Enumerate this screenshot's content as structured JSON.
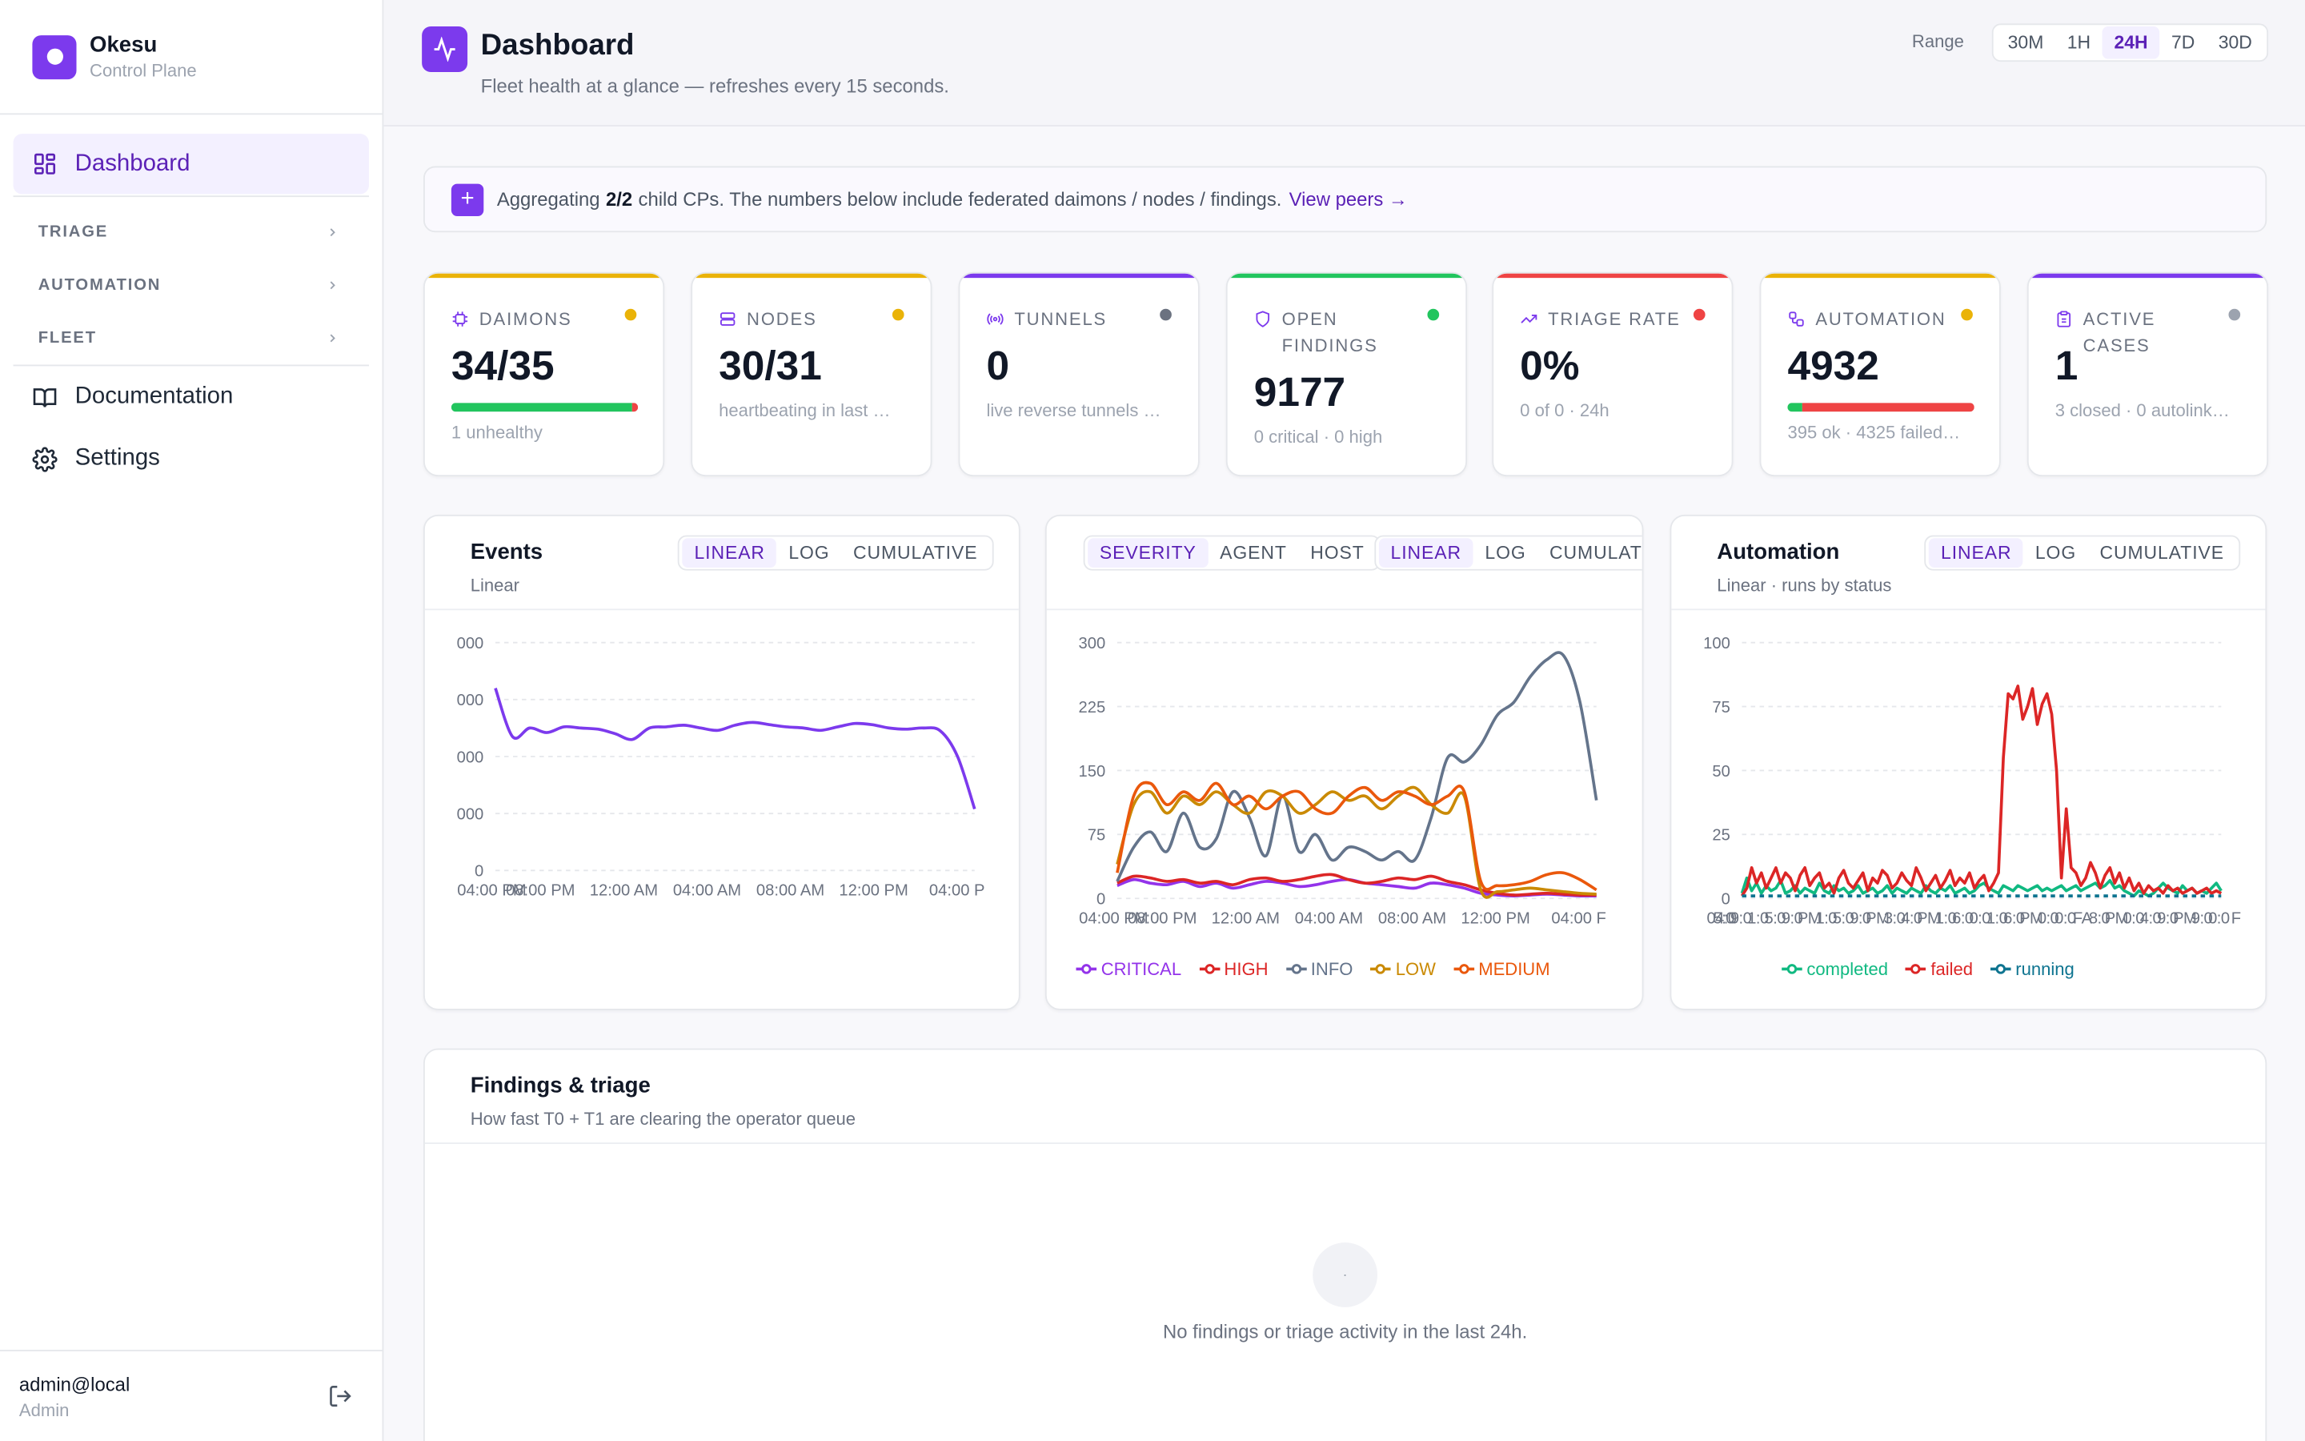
{
  "brand": {
    "name": "Okesu",
    "subtitle": "Control Plane"
  },
  "nav": {
    "active": "Dashboard",
    "sections": [
      "TRIAGE",
      "AUTOMATION",
      "FLEET"
    ],
    "documentation": "Documentation",
    "settings": "Settings"
  },
  "user": {
    "name": "admin@local",
    "role": "Admin"
  },
  "header": {
    "title": "Dashboard",
    "subtitle": "Fleet health at a glance — refreshes every 15 seconds.",
    "range_label": "Range",
    "ranges": [
      "30M",
      "1H",
      "24H",
      "7D",
      "30D"
    ],
    "active_range": "24H"
  },
  "banner": {
    "prefix": "Aggregating",
    "count": "2/2",
    "text": "child CPs. The numbers below include federated daimons / nodes / findings.",
    "link": "View peers →"
  },
  "cards": [
    {
      "label": "DAIMONS",
      "value": "34/35",
      "sub": "1 unhealthy",
      "accent": "#eab308",
      "dot": "#eab308",
      "icon": "chip-icon",
      "bar": [
        {
          "pct": 97,
          "color": "#22c55e"
        },
        {
          "pct": 3,
          "color": "#ef4444"
        }
      ]
    },
    {
      "label": "NODES",
      "value": "30/31",
      "sub": "heartbeating in last …",
      "accent": "#eab308",
      "dot": "#eab308",
      "icon": "server-icon"
    },
    {
      "label": "TUNNELS",
      "value": "0",
      "sub": "live reverse tunnels …",
      "accent": "#7c3aed",
      "dot": "#6b7280",
      "icon": "broadcast-icon"
    },
    {
      "label": "OPEN FINDINGS",
      "value": "9177",
      "sub": "0 critical · 0 high",
      "accent": "#22c55e",
      "dot": "#22c55e",
      "icon": "shield-icon"
    },
    {
      "label": "TRIAGE RATE",
      "value": "0%",
      "sub": "0 of 0 · 24h",
      "accent": "#ef4444",
      "dot": "#ef4444",
      "icon": "trend-up-icon"
    },
    {
      "label": "AUTOMATION",
      "value": "4932",
      "sub": "395 ok · 4325 failed…",
      "accent": "#eab308",
      "dot": "#eab308",
      "icon": "workflow-icon",
      "bar": [
        {
          "pct": 8,
          "color": "#22c55e"
        },
        {
          "pct": 92,
          "color": "#ef4444"
        }
      ]
    },
    {
      "label": "ACTIVE CASES",
      "value": "1",
      "sub": "3 closed · 0 autolink…",
      "accent": "#7c3aed",
      "dot": "#9ca3af",
      "icon": "clipboard-icon"
    }
  ],
  "events_panel": {
    "title": "Events",
    "subtitle": "Linear",
    "modes": [
      "LINEAR",
      "LOG",
      "CUMULATIVE"
    ]
  },
  "findings_panel": {
    "groups": [
      "SEVERITY",
      "AGENT",
      "HOST"
    ],
    "modes": [
      "LINEAR",
      "LOG",
      "CUMULATIVE"
    ]
  },
  "automation_panel": {
    "title": "Automation",
    "subtitle": "Linear · runs by status",
    "modes": [
      "LINEAR",
      "LOG",
      "CUMULATIVE"
    ]
  },
  "chart_data": [
    {
      "type": "line",
      "name": "Events",
      "x_tick_labels": [
        "04:00 PM",
        "08:00 PM",
        "12:00 AM",
        "04:00 AM",
        "08:00 AM",
        "12:00 PM",
        "04:00 P"
      ],
      "y_tick_labels": [
        "0",
        "000",
        "000",
        "000",
        "000"
      ],
      "ylim": [
        0,
        4
      ],
      "series": [
        {
          "color": "#7c3aed",
          "values": [
            3.2,
            2.35,
            2.5,
            2.42,
            2.52,
            2.5,
            2.48,
            2.4,
            2.3,
            2.5,
            2.52,
            2.55,
            2.5,
            2.46,
            2.55,
            2.6,
            2.56,
            2.52,
            2.5,
            2.46,
            2.52,
            2.58,
            2.56,
            2.5,
            2.48,
            2.5,
            2.45,
            2.0,
            1.08
          ]
        }
      ]
    },
    {
      "type": "line",
      "name": "Findings",
      "x_tick_labels": [
        "04:00 PM",
        "08:00 PM",
        "12:00 AM",
        "04:00 AM",
        "08:00 AM",
        "12:00 PM",
        "04:00 F"
      ],
      "y_ticks": [
        0,
        75,
        150,
        225,
        300
      ],
      "ylim": [
        0,
        300
      ],
      "legend": [
        "CRITICAL",
        "HIGH",
        "INFO",
        "LOW",
        "MEDIUM"
      ],
      "series": [
        {
          "name": "CRITICAL",
          "color": "#9333ea",
          "values": [
            15,
            22,
            18,
            16,
            20,
            14,
            18,
            12,
            16,
            20,
            18,
            14,
            16,
            20,
            22,
            18,
            16,
            14,
            12,
            18,
            16,
            12,
            6,
            4,
            3,
            4,
            5,
            4,
            3,
            3
          ]
        },
        {
          "name": "HIGH",
          "color": "#dc2626",
          "values": [
            18,
            26,
            24,
            20,
            22,
            18,
            20,
            16,
            22,
            24,
            20,
            22,
            26,
            28,
            22,
            18,
            20,
            24,
            22,
            26,
            20,
            16,
            10,
            6,
            4,
            5,
            6,
            5,
            4,
            4
          ]
        },
        {
          "name": "INFO",
          "color": "#64748b",
          "values": [
            20,
            60,
            78,
            55,
            100,
            60,
            70,
            125,
            95,
            50,
            120,
            55,
            75,
            45,
            60,
            55,
            45,
            55,
            45,
            95,
            165,
            160,
            180,
            215,
            230,
            260,
            280,
            285,
            230,
            115
          ]
        },
        {
          "name": "LOW",
          "color": "#ca8a04",
          "values": [
            40,
            110,
            125,
            100,
            120,
            110,
            125,
            110,
            100,
            125,
            120,
            100,
            110,
            125,
            115,
            120,
            105,
            120,
            130,
            110,
            100,
            120,
            10,
            8,
            10,
            12,
            10,
            8,
            6,
            5
          ]
        },
        {
          "name": "MEDIUM",
          "color": "#ea580c",
          "values": [
            30,
            120,
            135,
            110,
            125,
            115,
            135,
            110,
            120,
            105,
            120,
            125,
            105,
            100,
            120,
            130,
            115,
            125,
            120,
            110,
            120,
            125,
            20,
            15,
            16,
            20,
            28,
            30,
            22,
            10
          ]
        }
      ]
    },
    {
      "type": "line",
      "name": "Automation",
      "x_tick_labels": [
        "04:0",
        "5:0",
        "9:0",
        "1:0",
        "5:0",
        "9:0",
        "PM",
        "1:0",
        "5:0",
        "9:0",
        "PM",
        "3:0",
        "4:0",
        "PM",
        "1:0",
        "6:0",
        "0:0",
        "1:0",
        "6:0",
        "PM",
        "0:0",
        "0:0",
        "FA",
        "8:0",
        "PM",
        "0:0",
        "4:0",
        "9:0",
        "PM",
        "9:0",
        "0:0",
        "F"
      ],
      "y_ticks": [
        0,
        25,
        50,
        75,
        100
      ],
      "ylim": [
        0,
        100
      ],
      "legend": [
        "completed",
        "failed",
        "running"
      ],
      "series": [
        {
          "name": "completed",
          "color": "#10b981",
          "values": [
            2,
            8,
            3,
            6,
            2,
            5,
            3,
            4,
            7,
            2,
            3,
            5,
            2,
            4,
            3,
            2,
            6,
            3,
            2,
            5,
            3,
            4,
            2,
            3,
            5,
            2,
            3,
            4,
            2,
            3,
            5,
            2,
            4,
            3,
            2,
            4,
            3,
            2,
            5,
            3,
            2,
            4,
            3,
            5,
            2,
            3,
            4,
            2,
            3,
            5,
            6,
            4,
            3,
            2,
            5,
            4,
            3,
            5,
            4,
            3,
            4,
            5,
            3,
            4,
            3,
            4,
            5,
            3,
            4,
            5,
            3,
            4,
            5,
            6,
            4,
            5,
            7,
            4,
            5,
            3,
            2,
            1,
            3,
            2,
            1,
            2,
            4,
            6,
            4,
            3,
            2,
            5,
            3,
            4,
            2,
            3,
            2,
            4,
            6,
            3
          ]
        },
        {
          "name": "failed",
          "color": "#dc2626",
          "values": [
            1,
            4,
            12,
            6,
            10,
            4,
            8,
            12,
            6,
            10,
            8,
            3,
            9,
            12,
            5,
            8,
            10,
            4,
            6,
            2,
            8,
            11,
            6,
            4,
            7,
            10,
            3,
            8,
            6,
            11,
            9,
            4,
            6,
            10,
            7,
            5,
            12,
            8,
            3,
            6,
            9,
            4,
            7,
            11,
            5,
            8,
            6,
            10,
            4,
            7,
            9,
            3,
            6,
            10,
            55,
            80,
            78,
            83,
            70,
            75,
            82,
            68,
            76,
            80,
            72,
            50,
            8,
            35,
            12,
            10,
            5,
            8,
            14,
            10,
            4,
            9,
            12,
            6,
            10,
            4,
            8,
            3,
            6,
            2,
            5,
            3,
            4,
            2,
            5,
            3,
            4,
            2,
            3,
            4,
            2,
            3,
            4,
            2,
            3,
            2
          ]
        },
        {
          "name": "running",
          "color": "#0e7490",
          "values": [
            1,
            1,
            1,
            1,
            1,
            1,
            1,
            1,
            1,
            1,
            1,
            1,
            1,
            1,
            1,
            1,
            1,
            1,
            1,
            1,
            1,
            1,
            1,
            1,
            1,
            1,
            1,
            1,
            1,
            1,
            1,
            1,
            1,
            1,
            1,
            1,
            1,
            1,
            1,
            1,
            1,
            1,
            1,
            1,
            1,
            1,
            1,
            1,
            1,
            1,
            1,
            1,
            1,
            1,
            1,
            1,
            1,
            1,
            1,
            1,
            1,
            1,
            1,
            1,
            1,
            1,
            1,
            1,
            1,
            1,
            1,
            1,
            1,
            1,
            1,
            1,
            1,
            1,
            1,
            1,
            1,
            1,
            1,
            1,
            1,
            1,
            1,
            1,
            1,
            1,
            1,
            1,
            1,
            1,
            1,
            1,
            1,
            1,
            1,
            1
          ]
        }
      ]
    }
  ],
  "findings_triage": {
    "title": "Findings & triage",
    "subtitle": "How fast T0 + T1 are clearing the operator queue",
    "empty_dot": "·",
    "empty": "No findings or triage activity in the last 24h."
  }
}
